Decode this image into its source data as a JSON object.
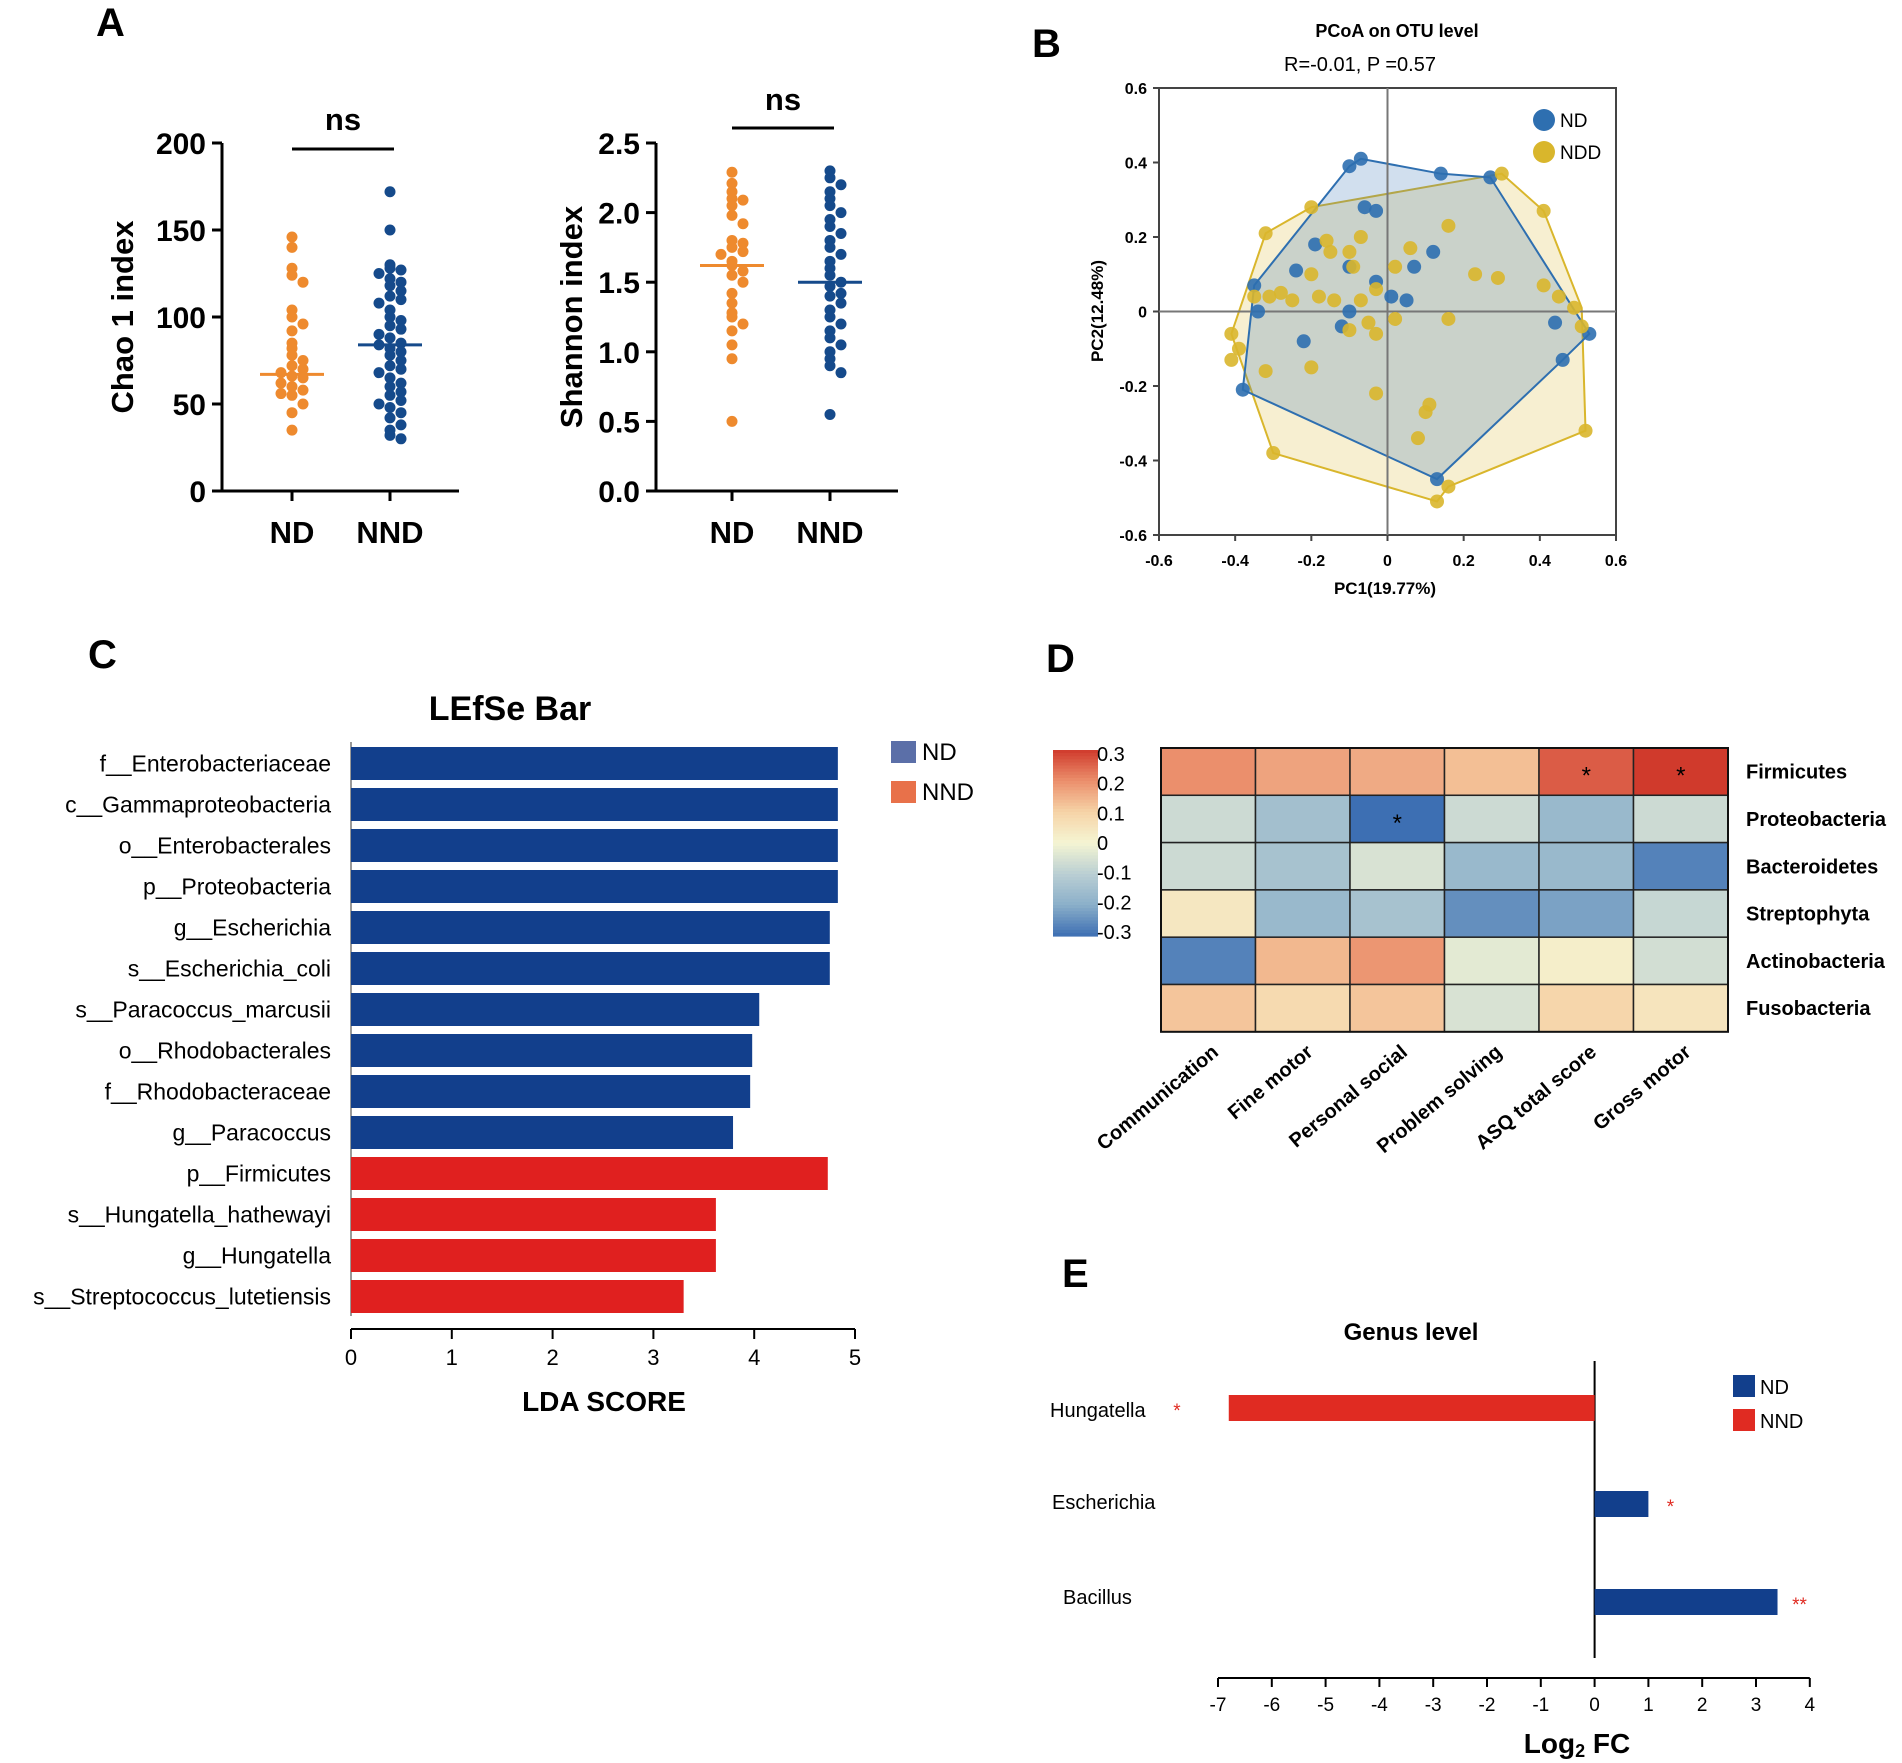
{
  "panels": {
    "a": {
      "label": "A",
      "groups": [
        "ND",
        "NND"
      ],
      "group_colors": [
        "#EE8A2E",
        "#154A8B"
      ],
      "charts": [
        {
          "ylabel": "Chao 1 index",
          "ylim": [
            0,
            200
          ],
          "ticks": [
            0,
            50,
            100,
            150,
            200
          ],
          "sig": "ns",
          "medians": [
            67,
            84
          ],
          "nd_values": [
            146,
            140,
            128,
            124,
            120,
            104,
            100,
            96,
            92,
            85,
            82,
            78,
            75,
            72,
            70,
            68,
            66,
            65,
            62,
            60,
            58,
            56,
            55,
            50,
            45,
            35
          ],
          "nnd_values": [
            172,
            150,
            130,
            128,
            127,
            125,
            122,
            120,
            118,
            115,
            112,
            110,
            108,
            104,
            100,
            98,
            95,
            93,
            90,
            88,
            85,
            84,
            82,
            80,
            78,
            75,
            72,
            70,
            68,
            65,
            62,
            60,
            57,
            55,
            52,
            50,
            48,
            45,
            42,
            38,
            35,
            32,
            30
          ]
        },
        {
          "ylabel": "Shannon index",
          "ylim": [
            0,
            2.5
          ],
          "ticks": [
            "0.0",
            "0.5",
            "1.0",
            "1.5",
            "2.0",
            "2.5"
          ],
          "sig": "ns",
          "medians": [
            1.62,
            1.5
          ],
          "nd_values": [
            2.29,
            2.21,
            2.15,
            2.1,
            2.09,
            2.05,
            1.98,
            1.92,
            1.8,
            1.78,
            1.75,
            1.72,
            1.7,
            1.65,
            1.62,
            1.58,
            1.55,
            1.5,
            1.42,
            1.35,
            1.28,
            1.25,
            1.2,
            1.15,
            1.05,
            0.95,
            0.5
          ],
          "nnd_values": [
            2.3,
            2.25,
            2.2,
            2.15,
            2.1,
            2.05,
            2.0,
            1.95,
            1.9,
            1.85,
            1.8,
            1.75,
            1.7,
            1.65,
            1.6,
            1.55,
            1.5,
            1.47,
            1.42,
            1.4,
            1.35,
            1.3,
            1.25,
            1.2,
            1.15,
            1.1,
            1.05,
            1.0,
            0.95,
            0.9,
            0.85,
            0.55
          ]
        }
      ]
    },
    "b": {
      "label": "B",
      "title": "PCoA on OTU level",
      "subtitle": "R=-0.01, P =0.57",
      "xlabel": "PC1(19.77%)",
      "ylabel": "PC2(12.48%)",
      "xlim": [
        -0.6,
        0.6
      ],
      "ylim": [
        -0.6,
        0.6
      ],
      "xticks": [
        "-0.6",
        "-0.4",
        "-0.2",
        "0",
        "0.2",
        "0.4",
        "0.6"
      ],
      "yticks": [
        "-0.6",
        "-0.4",
        "-0.2",
        "0",
        "0.2",
        "0.4",
        "0.6"
      ],
      "legend": [
        "ND",
        "NDD"
      ],
      "colors": [
        "#2E6FB0",
        "#D9B62C"
      ],
      "nd_hull": [
        [
          -0.1,
          0.39
        ],
        [
          -0.07,
          0.41
        ],
        [
          0.14,
          0.37
        ],
        [
          0.27,
          0.36
        ],
        [
          0.53,
          -0.06
        ],
        [
          0.46,
          -0.13
        ],
        [
          0.13,
          -0.45
        ],
        [
          -0.38,
          -0.21
        ],
        [
          -0.35,
          0.07
        ]
      ],
      "ndd_hull": [
        [
          -0.2,
          0.28
        ],
        [
          0.3,
          0.37
        ],
        [
          0.41,
          0.27
        ],
        [
          0.51,
          0.01
        ],
        [
          0.52,
          -0.32
        ],
        [
          0.16,
          -0.47
        ],
        [
          0.13,
          -0.51
        ],
        [
          -0.3,
          -0.38
        ],
        [
          -0.41,
          -0.06
        ],
        [
          -0.32,
          0.21
        ]
      ],
      "nd_points": [
        [
          -0.1,
          0.39
        ],
        [
          -0.07,
          0.41
        ],
        [
          0.14,
          0.37
        ],
        [
          0.27,
          0.36
        ],
        [
          0.53,
          -0.06
        ],
        [
          0.46,
          -0.13
        ],
        [
          0.13,
          -0.45
        ],
        [
          -0.38,
          -0.21
        ],
        [
          -0.35,
          0.07
        ],
        [
          -0.03,
          0.27
        ],
        [
          -0.06,
          0.28
        ],
        [
          -0.19,
          0.18
        ],
        [
          -0.24,
          0.11
        ],
        [
          -0.1,
          0.12
        ],
        [
          -0.03,
          0.08
        ],
        [
          0.12,
          0.16
        ],
        [
          0.07,
          0.12
        ],
        [
          0.01,
          0.04
        ],
        [
          0.05,
          0.03
        ],
        [
          -0.34,
          0.0
        ],
        [
          -0.22,
          -0.08
        ],
        [
          -0.1,
          0.0
        ],
        [
          0.44,
          -0.03
        ],
        [
          -0.12,
          -0.04
        ]
      ],
      "ndd_points": [
        [
          -0.28,
          0.05
        ],
        [
          -0.2,
          0.1
        ],
        [
          -0.15,
          0.16
        ],
        [
          -0.31,
          0.04
        ],
        [
          -0.41,
          -0.06
        ],
        [
          -0.41,
          -0.13
        ],
        [
          -0.39,
          -0.1
        ],
        [
          -0.32,
          -0.16
        ],
        [
          -0.35,
          0.04
        ],
        [
          -0.25,
          0.03
        ],
        [
          -0.18,
          0.04
        ],
        [
          -0.14,
          0.03
        ],
        [
          -0.07,
          0.03
        ],
        [
          -0.03,
          0.06
        ],
        [
          0.02,
          0.12
        ],
        [
          0.06,
          0.17
        ],
        [
          0.16,
          -0.02
        ],
        [
          0.23,
          0.1
        ],
        [
          0.29,
          0.09
        ],
        [
          0.41,
          0.07
        ],
        [
          0.45,
          0.04
        ],
        [
          0.51,
          -0.04
        ],
        [
          0.52,
          -0.32
        ],
        [
          0.16,
          -0.47
        ],
        [
          0.13,
          -0.51
        ],
        [
          0.1,
          -0.27
        ],
        [
          0.08,
          -0.34
        ],
        [
          -0.3,
          -0.38
        ],
        [
          -0.03,
          -0.06
        ],
        [
          -0.1,
          -0.05
        ],
        [
          -0.03,
          -0.22
        ],
        [
          0.11,
          -0.25
        ],
        [
          -0.09,
          0.12
        ],
        [
          -0.07,
          0.2
        ],
        [
          -0.1,
          0.16
        ],
        [
          -0.16,
          0.19
        ],
        [
          -0.2,
          -0.15
        ],
        [
          -0.05,
          -0.03
        ],
        [
          0.02,
          -0.02
        ],
        [
          0.3,
          0.37
        ],
        [
          0.41,
          0.27
        ],
        [
          -0.2,
          0.28
        ],
        [
          -0.32,
          0.21
        ],
        [
          0.49,
          0.01
        ],
        [
          0.16,
          0.23
        ]
      ]
    },
    "c": {
      "label": "C",
      "title": "LEfSe Bar",
      "xlabel": "LDA SCORE",
      "xlim": [
        0,
        5
      ],
      "xticks": [
        "0",
        "1",
        "2",
        "3",
        "4",
        "5"
      ],
      "legend": [
        "ND",
        "NND"
      ],
      "legend_colors": [
        "#5B6FA8",
        "#E8714A"
      ]
    },
    "d": {
      "label": "D",
      "colorbar_ticks": [
        "0.3",
        "0.2",
        "0.1",
        "0",
        "-0.1",
        "-0.2",
        "-0.3"
      ],
      "colorbar_colors": [
        "#D03A2C",
        "#EB8F6C",
        "#F6D3A7",
        "#F5F5D3",
        "#BACFD3",
        "#8BAFC9",
        "#3D6FB3"
      ]
    },
    "e": {
      "label": "E",
      "title": "Genus level",
      "xlabel_base": "Log",
      "xlabel_sub": "2",
      "xlabel_rest": " FC",
      "xlim": [
        -7,
        4
      ],
      "xticks": [
        "-7",
        "-6",
        "-5",
        "-4",
        "-3",
        "-2",
        "-1",
        "0",
        "1",
        "2",
        "3",
        "4"
      ],
      "legend": [
        "ND",
        "NND"
      ],
      "legend_colors": [
        "#123F8C",
        "#E02B22"
      ]
    }
  },
  "chart_data": [
    {
      "panel": "A-left",
      "type": "scatter",
      "categories": [
        "ND",
        "NND"
      ],
      "ylabel": "Chao 1 index",
      "ylim": [
        0,
        200
      ],
      "median": [
        67,
        84
      ],
      "significance": "ns"
    },
    {
      "panel": "A-right",
      "type": "scatter",
      "categories": [
        "ND",
        "NND"
      ],
      "ylabel": "Shannon index",
      "ylim": [
        0,
        2.5
      ],
      "median": [
        1.62,
        1.5
      ],
      "significance": "ns"
    },
    {
      "panel": "B",
      "type": "scatter",
      "title": "PCoA on OTU level",
      "subtitle": "R=-0.01, P =0.57",
      "xlabel": "PC1(19.77%)",
      "ylabel": "PC2(12.48%)",
      "xlim": [
        -0.6,
        0.6
      ],
      "ylim": [
        -0.6,
        0.6
      ],
      "series": [
        {
          "name": "ND"
        },
        {
          "name": "NDD"
        }
      ]
    },
    {
      "panel": "C",
      "type": "bar",
      "title": "LEfSe Bar",
      "xlabel": "LDA SCORE",
      "xlim": [
        0,
        5
      ],
      "categories": [
        "f__Enterobacteriaceae",
        "c__Gammaproteobacteria",
        "o__Enterobacterales",
        "p__Proteobacteria",
        "g__Escherichia",
        "s__Escherichia_coli",
        "s__Paracoccus_marcusii",
        "o__Rhodobacterales",
        "f__Rhodobacteraceae",
        "g__Paracoccus",
        "p__Firmicutes",
        "s__Hungatella_hathewayi",
        "g__Hungatella",
        "s__Streptococcus_lutetiensis"
      ],
      "values": [
        4.83,
        4.83,
        4.83,
        4.83,
        4.75,
        4.75,
        4.05,
        3.98,
        3.96,
        3.79,
        4.73,
        3.62,
        3.62,
        3.3
      ],
      "groups": [
        "ND",
        "ND",
        "ND",
        "ND",
        "ND",
        "ND",
        "ND",
        "ND",
        "ND",
        "ND",
        "NND",
        "NND",
        "NND",
        "NND"
      ],
      "group_colors": {
        "ND": "#123F8C",
        "NND": "#E0201F"
      }
    },
    {
      "panel": "D",
      "type": "heatmap",
      "rows": [
        "Firmicutes",
        "Proteobacteria",
        "Bacteroidetes",
        "Streptophyta",
        "Actinobacteria",
        "Fusobacteria"
      ],
      "cols": [
        "Communication",
        "Fine motor",
        "Personal social",
        "Problem solving",
        "ASQ total score",
        "Gross motor"
      ],
      "values": [
        [
          0.2,
          0.17,
          0.16,
          0.13,
          0.26,
          0.3
        ],
        [
          -0.07,
          -0.15,
          -0.3,
          -0.07,
          -0.17,
          -0.07
        ],
        [
          -0.07,
          -0.14,
          -0.05,
          -0.17,
          -0.17,
          -0.27
        ],
        [
          0.04,
          -0.17,
          -0.14,
          -0.25,
          -0.22,
          -0.08
        ],
        [
          -0.27,
          0.14,
          0.19,
          -0.03,
          0.02,
          -0.06
        ],
        [
          0.12,
          0.08,
          0.12,
          -0.05,
          0.09,
          0.05
        ]
      ],
      "stars": [
        [
          "",
          "",
          "",
          "",
          "*",
          "*"
        ],
        [
          "",
          "",
          "*",
          "",
          "",
          ""
        ],
        [
          "",
          "",
          "",
          "",
          "",
          ""
        ],
        [
          "",
          "",
          "",
          "",
          "",
          ""
        ],
        [
          "",
          "",
          "",
          "",
          "",
          ""
        ],
        [
          "",
          "",
          "",
          "",
          "",
          ""
        ]
      ],
      "vmin": -0.3,
      "vmax": 0.3
    },
    {
      "panel": "E",
      "type": "bar",
      "title": "Genus level",
      "xlabel": "Log2 FC",
      "xlim": [
        -7,
        4
      ],
      "categories": [
        "Hungatella",
        "Escherichia",
        "Bacillus"
      ],
      "values": [
        -6.8,
        1.0,
        3.4
      ],
      "groups": [
        "NND",
        "ND",
        "ND"
      ],
      "stars": [
        "*",
        "*",
        "**"
      ]
    }
  ]
}
